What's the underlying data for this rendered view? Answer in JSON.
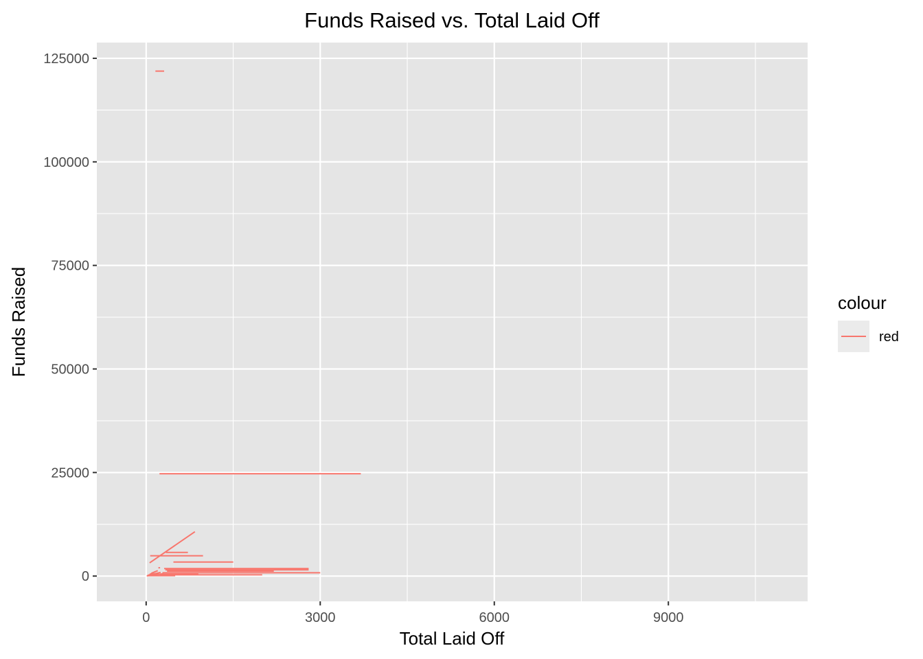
{
  "chart_data": {
    "type": "line",
    "title": "Funds Raised vs. Total Laid Off",
    "xlabel": "Total Laid Off",
    "ylabel": "Funds Raised",
    "xlim": [
      -850,
      11400
    ],
    "ylim": [
      -6100,
      128800
    ],
    "x_ticks": [
      0,
      3000,
      6000,
      9000
    ],
    "x_minor_ticks": [
      1500,
      4500,
      7500,
      10500
    ],
    "y_ticks": [
      0,
      25000,
      50000,
      75000,
      100000,
      125000
    ],
    "y_minor_ticks": [
      12500,
      37500,
      62500,
      87500,
      112500
    ],
    "grid": true,
    "panel_color": "#e5e5e5",
    "line_color": "#f8766d",
    "legend": {
      "title": "colour",
      "position": "right",
      "entries": [
        "red"
      ]
    },
    "series": [
      {
        "segments": [
          [
            [
              160,
              121900
            ],
            [
              310,
              121900
            ]
          ],
          [
            [
              230,
              24700
            ],
            [
              3700,
              24700
            ]
          ],
          [
            [
              60,
              3200
            ],
            [
              840,
              10700
            ]
          ],
          [
            [
              70,
              4900
            ],
            [
              980,
              4900
            ]
          ],
          [
            [
              340,
              5700
            ],
            [
              720,
              5700
            ]
          ],
          [
            [
              470,
              3400
            ],
            [
              1500,
              3400
            ]
          ],
          [
            [
              310,
              1800
            ],
            [
              2800,
              1800
            ]
          ],
          [
            [
              330,
              1500
            ],
            [
              2800,
              1500
            ]
          ],
          [
            [
              360,
              1200
            ],
            [
              2200,
              1200
            ]
          ],
          [
            [
              280,
              800
            ],
            [
              3000,
              800
            ]
          ],
          [
            [
              240,
              300
            ],
            [
              2000,
              300
            ]
          ],
          [
            [
              130,
              450
            ],
            [
              900,
              450
            ]
          ],
          [
            [
              20,
              100
            ],
            [
              500,
              100
            ]
          ],
          [
            [
              10,
              50
            ],
            [
              300,
              600
            ]
          ],
          [
            [
              30,
              200
            ],
            [
              250,
              900
            ]
          ],
          [
            [
              60,
              400
            ],
            [
              160,
              1100
            ]
          ],
          [
            [
              90,
              700
            ],
            [
              200,
              1300
            ]
          ],
          [
            [
              210,
              2000
            ],
            [
              240,
              2000
            ]
          ]
        ]
      }
    ]
  }
}
